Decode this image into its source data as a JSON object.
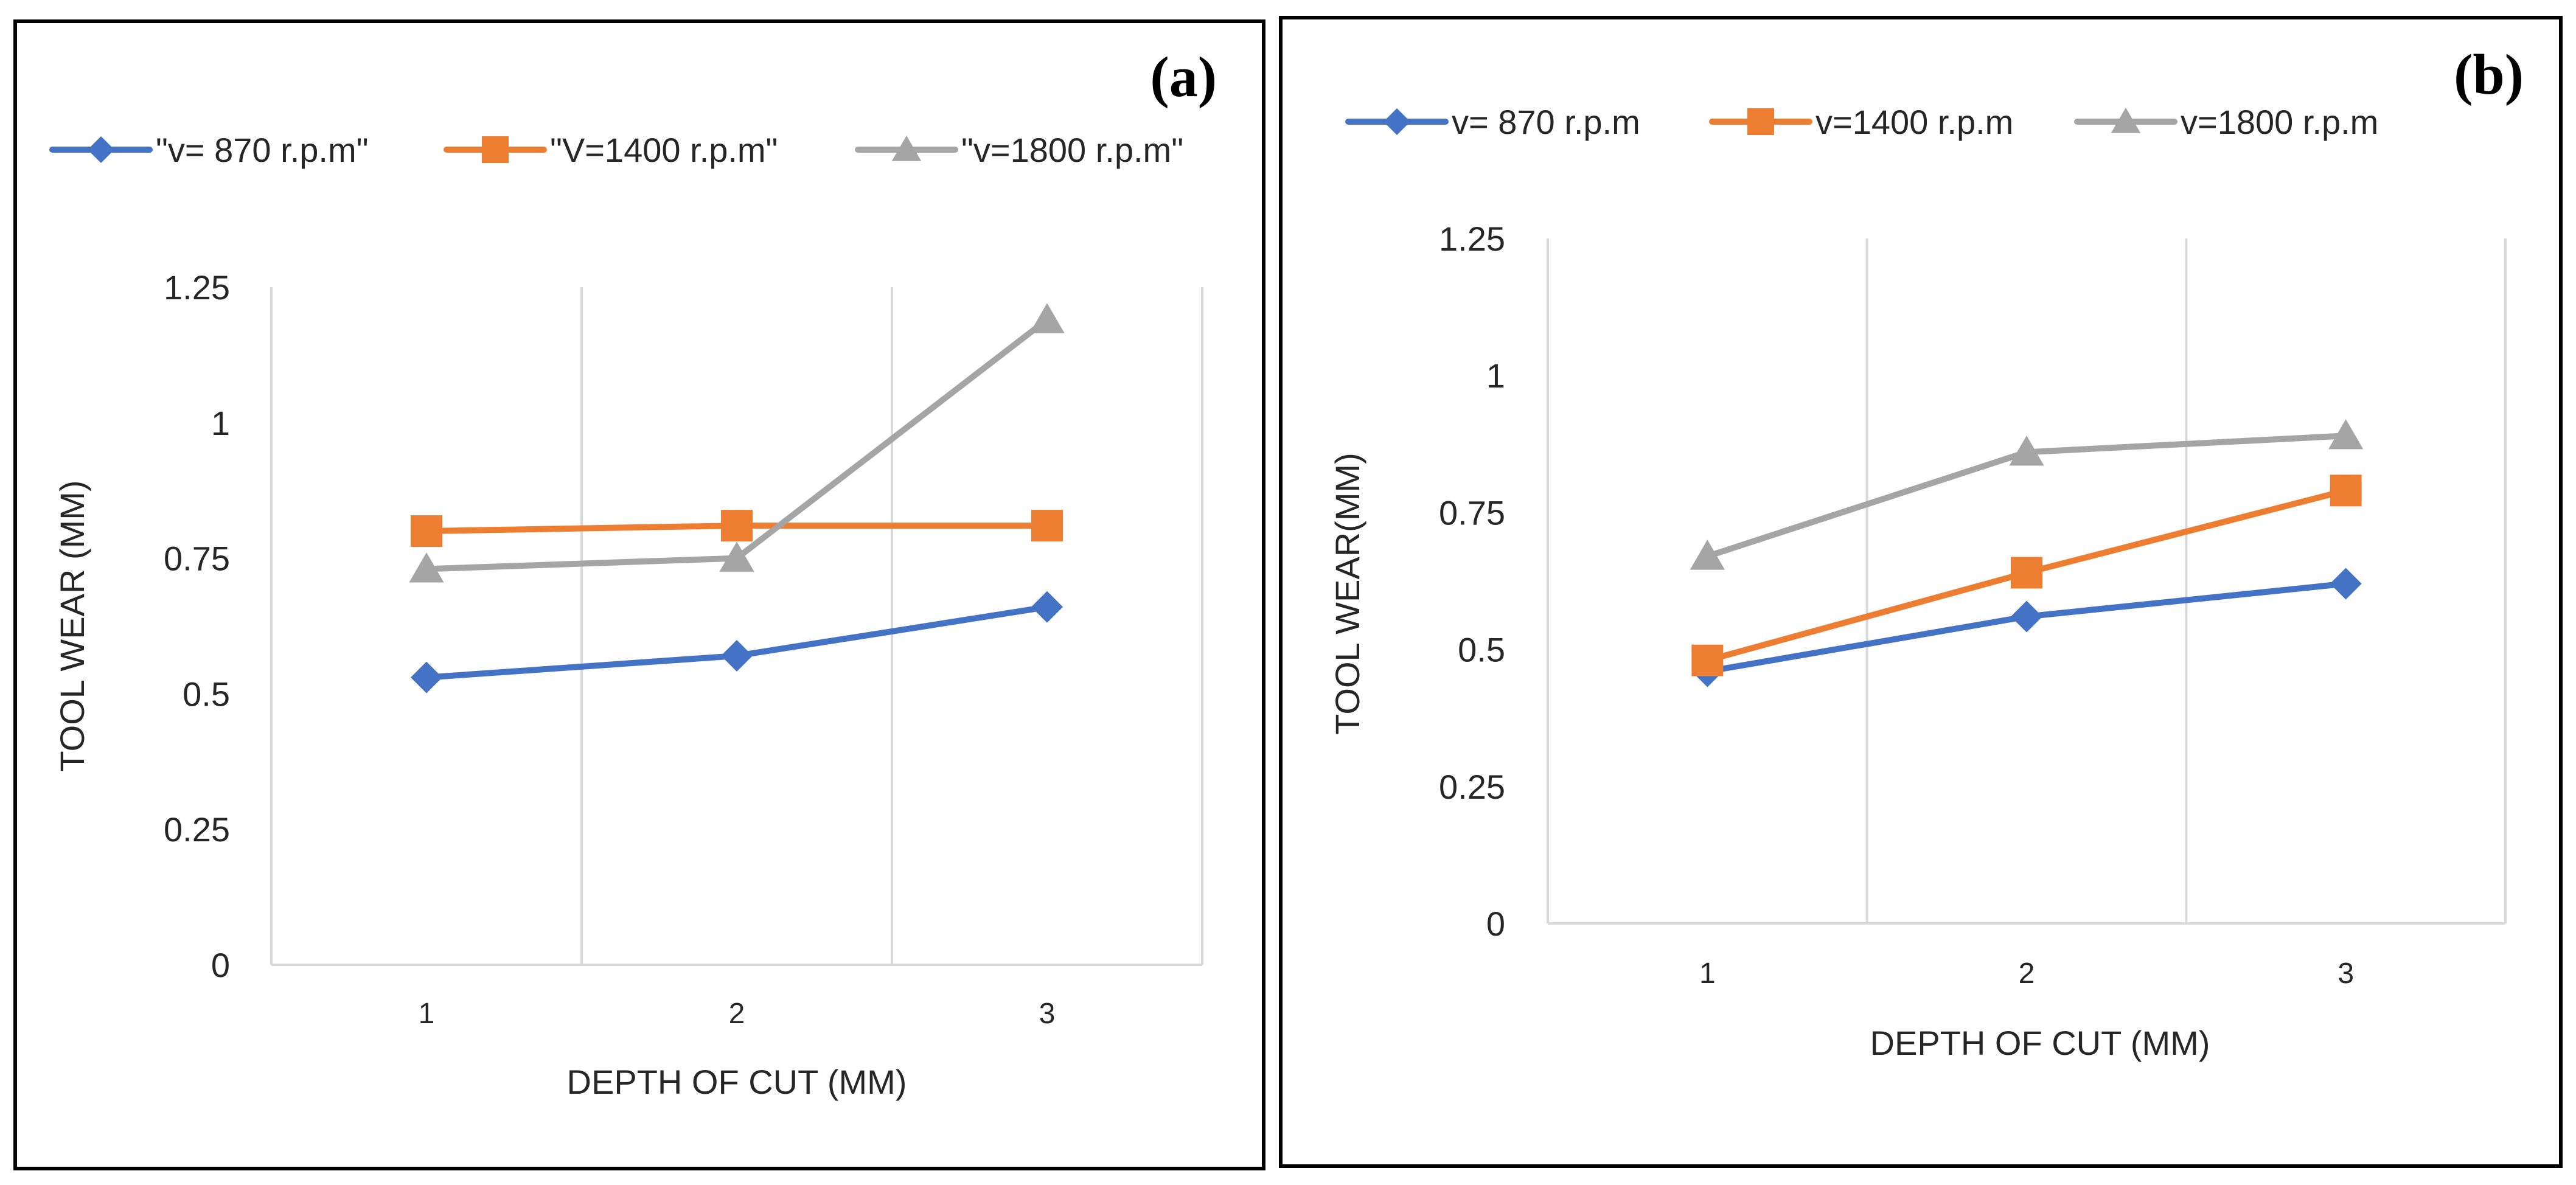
{
  "chart_data": [
    {
      "panel_label": "(a)",
      "type": "line",
      "categories": [
        "1",
        "2",
        "3"
      ],
      "series": [
        {
          "name": "\"v= 870 r.p.m\"",
          "color": "#4472c4",
          "marker": "diamond",
          "values": [
            0.53,
            0.57,
            0.66
          ]
        },
        {
          "name": "\"V=1400 r.p.m\"",
          "color": "#ed7d31",
          "marker": "square",
          "values": [
            0.8,
            0.81,
            0.81
          ]
        },
        {
          "name": "\"v=1800 r.p.m\"",
          "color": "#a5a5a5",
          "marker": "triangle",
          "values": [
            0.73,
            0.75,
            1.19
          ]
        }
      ],
      "yticks": [
        "0",
        "0.25",
        "0.5",
        "0.75",
        "1",
        "1.25"
      ],
      "ylim": [
        0,
        1.25
      ],
      "xlabel": "DEPTH OF CUT (MM)",
      "ylabel": "TOOL WEAR (MM)",
      "legend_position": "top",
      "grid": "vertical"
    },
    {
      "panel_label": "(b)",
      "type": "line",
      "categories": [
        "1",
        "2",
        "3"
      ],
      "series": [
        {
          "name": "v= 870 r.p.m",
          "color": "#4472c4",
          "marker": "diamond",
          "values": [
            0.46,
            0.56,
            0.62
          ]
        },
        {
          "name": "v=1400 r.p.m",
          "color": "#ed7d31",
          "marker": "square",
          "values": [
            0.48,
            0.64,
            0.79
          ]
        },
        {
          "name": "v=1800 r.p.m",
          "color": "#a5a5a5",
          "marker": "triangle",
          "values": [
            0.67,
            0.86,
            0.89
          ]
        }
      ],
      "yticks": [
        "0",
        "0.25",
        "0.5",
        "0.75",
        "1",
        "1.25"
      ],
      "ylim": [
        0,
        1.25
      ],
      "xlabel": "DEPTH OF CUT (MM)",
      "ylabel": "TOOL WEAR(MM)",
      "legend_position": "top",
      "grid": "vertical"
    }
  ]
}
